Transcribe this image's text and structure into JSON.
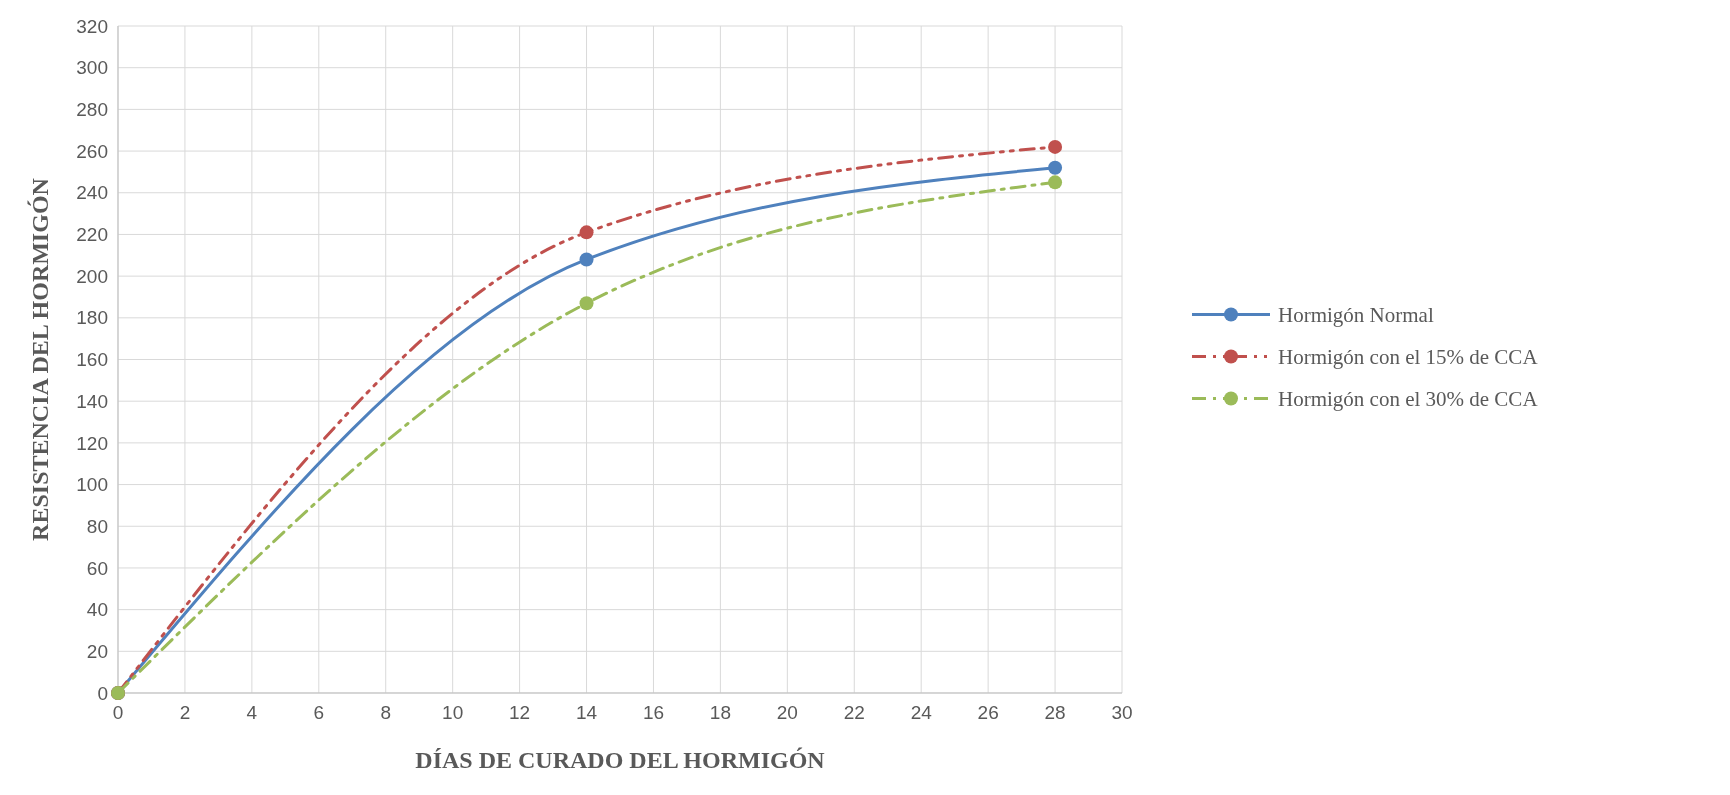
{
  "chart_data": {
    "type": "line",
    "xlabel": "DÍAS DE CURADO DEL HORMIGÓN",
    "ylabel": "RESISTENCIA DEL HORMIGÓN",
    "x": [
      0,
      14,
      28
    ],
    "series": [
      {
        "name": "Hormigón Normal",
        "color": "#4f81bd",
        "values": [
          0,
          208,
          252
        ],
        "line_style": "solid"
      },
      {
        "name": "Hormigón con el 15% de CCA",
        "color": "#c0504d",
        "values": [
          0,
          221,
          262
        ],
        "line_style": "dashed"
      },
      {
        "name": "Hormigón con el 30% de CCA",
        "color": "#9bbb59",
        "values": [
          0,
          187,
          245
        ],
        "line_style": "dashed"
      }
    ],
    "xlim": [
      0,
      30
    ],
    "xticks": [
      0,
      2,
      4,
      6,
      8,
      10,
      12,
      14,
      16,
      18,
      20,
      22,
      24,
      26,
      28,
      30
    ],
    "ylim": [
      0,
      320
    ],
    "yticks": [
      0,
      20,
      40,
      60,
      80,
      100,
      120,
      140,
      160,
      180,
      200,
      220,
      240,
      260,
      280,
      300,
      320
    ],
    "grid": true,
    "legend": "right",
    "marker": "circle"
  }
}
